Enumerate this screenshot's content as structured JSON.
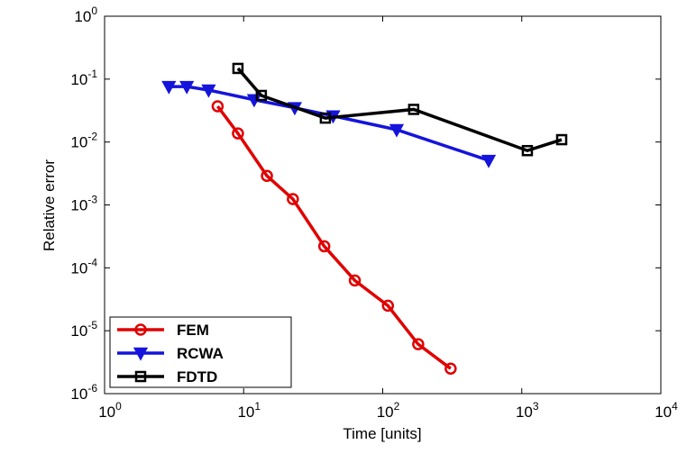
{
  "chart_data": {
    "type": "line",
    "xlabel": "Time [units]",
    "ylabel": "Relative error",
    "log_x": true,
    "log_y": true,
    "legend": "lower left",
    "xlim": [
      1,
      10000
    ],
    "ylim": [
      1e-06,
      1
    ],
    "xticks": [
      {
        "value": 1,
        "label": "10",
        "sup": "0"
      },
      {
        "value": 10,
        "label": "10",
        "sup": "1"
      },
      {
        "value": 100,
        "label": "10",
        "sup": "2"
      },
      {
        "value": 1000,
        "label": "10",
        "sup": "3"
      },
      {
        "value": 10000,
        "label": "10",
        "sup": "4"
      }
    ],
    "yticks": [
      {
        "value": 1e-06,
        "label": "10",
        "sup": "-6"
      },
      {
        "value": 1e-05,
        "label": "10",
        "sup": "-5"
      },
      {
        "value": 0.0001,
        "label": "10",
        "sup": "-4"
      },
      {
        "value": 0.001,
        "label": "10",
        "sup": "-3"
      },
      {
        "value": 0.01,
        "label": "10",
        "sup": "-2"
      },
      {
        "value": 0.1,
        "label": "10",
        "sup": "-1"
      },
      {
        "value": 1,
        "label": "10",
        "sup": "0"
      }
    ],
    "series": [
      {
        "name": "FEM",
        "color": "#e00000",
        "marker": "circle",
        "x": [
          6.5,
          9.1,
          14.7,
          22.6,
          38,
          63,
          109,
          180,
          308
        ],
        "values": [
          0.037,
          0.0137,
          0.0029,
          0.00124,
          0.00022,
          6.3e-05,
          2.5e-05,
          6.1e-06,
          2.5e-06
        ]
      },
      {
        "name": "RCWA",
        "color": "#1414dc",
        "marker": "triangle-down",
        "x": [
          2.9,
          3.9,
          5.6,
          11.9,
          23.3,
          44,
          126,
          578
        ],
        "values": [
          0.076,
          0.076,
          0.067,
          0.047,
          0.035,
          0.026,
          0.0157,
          0.0051
        ]
      },
      {
        "name": "FDTD",
        "color": "#000000",
        "marker": "square",
        "x": [
          9.1,
          13.4,
          38.7,
          167,
          1097,
          1936
        ],
        "values": [
          0.148,
          0.055,
          0.024,
          0.033,
          0.0073,
          0.0109
        ]
      }
    ]
  }
}
